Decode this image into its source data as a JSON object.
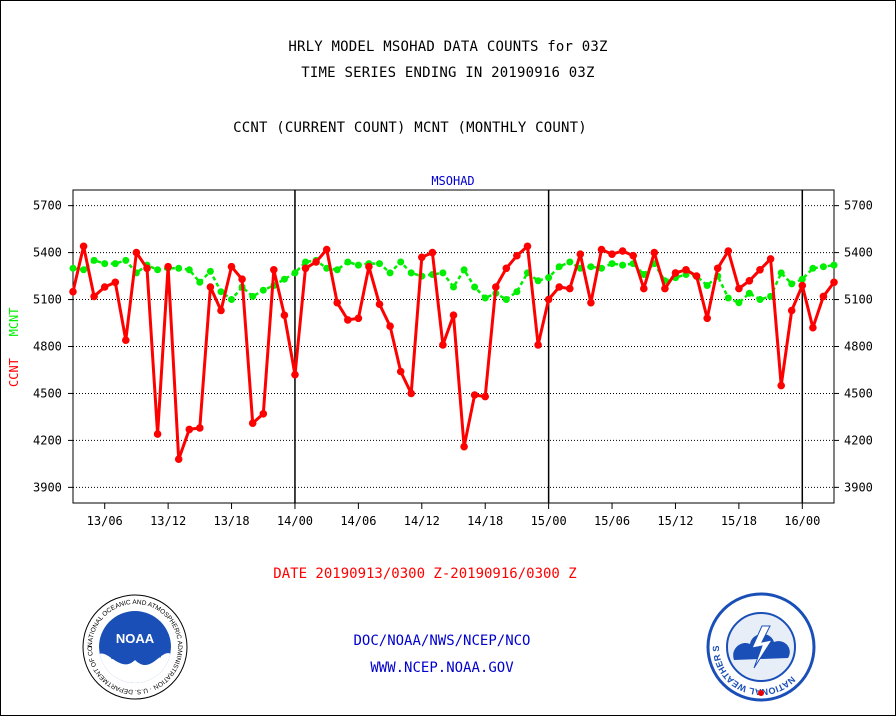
{
  "title_line1": "HRLY MODEL MSOHAD DATA COUNTS for 03Z",
  "title_line2": "TIME SERIES ENDING IN 20190916 03Z",
  "subtitle": "CCNT (CURRENT COUNT) MCNT (MONTHLY COUNT)",
  "ylabel_ccnt": "CCNT",
  "ylabel_mcnt": "MCNT",
  "date_range": "DATE 20190913/0300 Z-20190916/0300 Z",
  "footer_org": "DOC/NOAA/NWS/NCEP/NCO",
  "footer_url": "WWW.NCEP.NOAA.GOV",
  "logos": {
    "noaa_text": "NOAA",
    "noaa_ring": "NATIONAL OCEANIC AND ATMOSPHERIC ADMINISTRATION · U.S. DEPARTMENT OF COMMERCE ·",
    "nws_ring": "NATIONAL WEATHER SERVICE"
  },
  "colors": {
    "ccnt": "#ff0000",
    "mcnt": "#00ee00",
    "plot_title": "#0000cc",
    "footer": "#0000cc"
  },
  "chart_data": {
    "type": "line",
    "title": "MSOHAD",
    "x_start_hour": 3,
    "x_end_hour": 75,
    "ylim": [
      3800,
      5800
    ],
    "y_ticks": [
      3900,
      4200,
      4500,
      4800,
      5100,
      5400,
      5700
    ],
    "x_tick_labels": [
      {
        "hour": 6,
        "label": "13/06"
      },
      {
        "hour": 12,
        "label": "13/12"
      },
      {
        "hour": 18,
        "label": "13/18"
      },
      {
        "hour": 24,
        "label": "14/00"
      },
      {
        "hour": 30,
        "label": "14/06"
      },
      {
        "hour": 36,
        "label": "14/12"
      },
      {
        "hour": 42,
        "label": "14/18"
      },
      {
        "hour": 48,
        "label": "15/00"
      },
      {
        "hour": 54,
        "label": "15/06"
      },
      {
        "hour": 60,
        "label": "15/12"
      },
      {
        "hour": 66,
        "label": "15/18"
      },
      {
        "hour": 72,
        "label": "16/00"
      }
    ],
    "day_boundaries": [
      24,
      48,
      72
    ],
    "grid": true,
    "series": [
      {
        "name": "CCNT",
        "values": [
          5150,
          5440,
          5120,
          5180,
          5210,
          4840,
          5400,
          5300,
          4240,
          5310,
          4080,
          4270,
          4280,
          5180,
          5030,
          5310,
          5230,
          4310,
          4370,
          5290,
          5000,
          4620,
          5300,
          5340,
          5420,
          5080,
          4970,
          4980,
          5310,
          5070,
          4930,
          4640,
          4500,
          5370,
          5400,
          4810,
          5000,
          4160,
          4490,
          4480,
          5180,
          5300,
          5380,
          5440,
          4810,
          5100,
          5180,
          5170,
          5390,
          5080,
          5420,
          5390,
          5410,
          5380,
          5170,
          5400,
          5170,
          5270,
          5290,
          5250,
          4980,
          5300,
          5410,
          5170,
          5220,
          5290,
          5360,
          4550,
          5030,
          5190,
          4920,
          5120,
          5210
        ]
      },
      {
        "name": "MCNT",
        "values": [
          5300,
          5290,
          5350,
          5330,
          5330,
          5350,
          5270,
          5320,
          5290,
          5300,
          5300,
          5290,
          5210,
          5280,
          5150,
          5100,
          5180,
          5120,
          5160,
          5190,
          5230,
          5270,
          5340,
          5350,
          5300,
          5290,
          5340,
          5320,
          5330,
          5330,
          5270,
          5340,
          5270,
          5250,
          5260,
          5270,
          5180,
          5290,
          5180,
          5110,
          5140,
          5100,
          5150,
          5270,
          5220,
          5240,
          5310,
          5340,
          5300,
          5310,
          5300,
          5330,
          5320,
          5330,
          5260,
          5330,
          5220,
          5240,
          5260,
          5250,
          5190,
          5250,
          5110,
          5080,
          5140,
          5100,
          5120,
          5270,
          5200,
          5230,
          5300,
          5310,
          5320
        ]
      }
    ]
  }
}
